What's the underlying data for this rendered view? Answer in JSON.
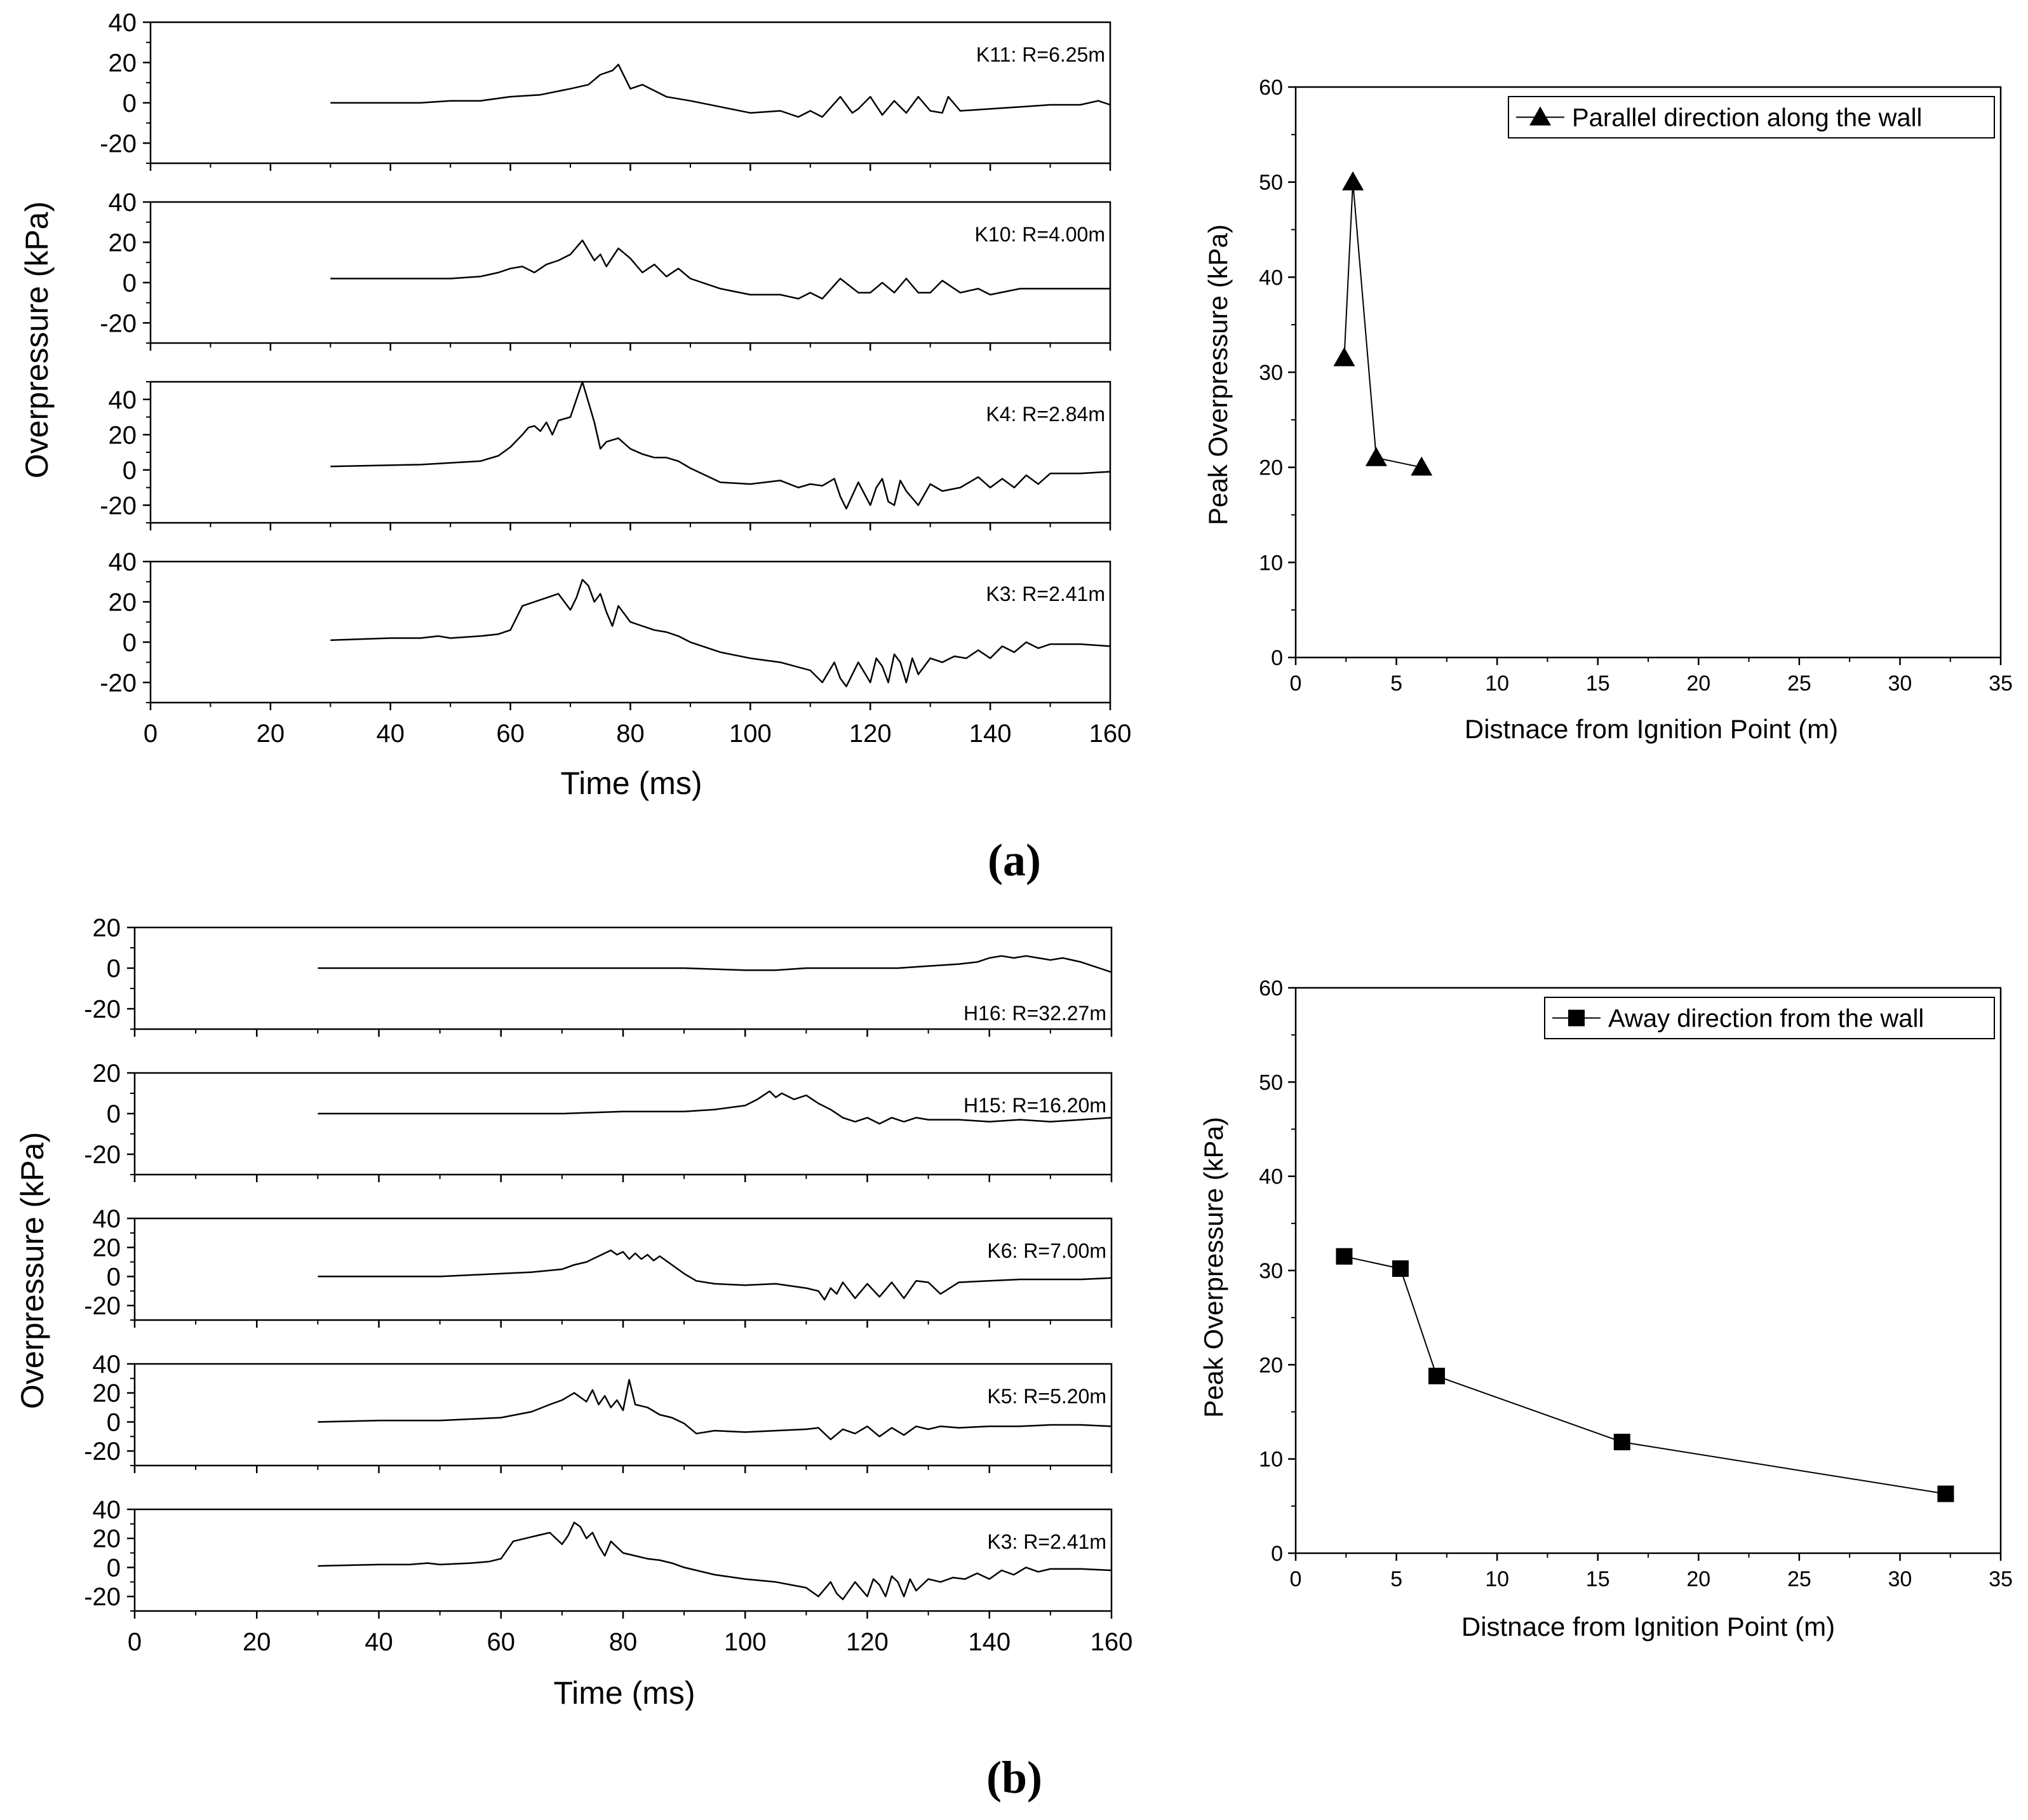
{
  "panel_labels": [
    "(a)",
    "(b)"
  ],
  "chart_data": [
    {
      "panel": "a",
      "type": "line",
      "title": "",
      "xlabel": "Time (ms)",
      "ylabel": "Overpressure (kPa)",
      "xlim": [
        0,
        160
      ],
      "xticks": [
        0,
        20,
        40,
        60,
        80,
        100,
        120,
        140,
        160
      ],
      "subplots": [
        {
          "label": "K11: R=6.25m",
          "ylim": [
            -30,
            40
          ],
          "yticks": [
            -20,
            0,
            20,
            40
          ],
          "x": [
            30,
            45,
            50,
            55,
            60,
            65,
            70,
            73,
            75,
            77,
            78,
            80,
            82,
            84,
            86,
            90,
            95,
            100,
            105,
            108,
            110,
            112,
            115,
            117,
            118,
            120,
            122,
            124,
            126,
            128,
            130,
            132,
            133,
            135,
            140,
            145,
            150,
            155,
            158,
            160
          ],
          "values": [
            0,
            0,
            1,
            1,
            3,
            4,
            7,
            9,
            14,
            16,
            19,
            7,
            9,
            6,
            3,
            1,
            -2,
            -5,
            -4,
            -7,
            -4,
            -7,
            3,
            -5,
            -3,
            3,
            -6,
            1,
            -5,
            3,
            -4,
            -5,
            3,
            -4,
            -3,
            -2,
            -1,
            -1,
            1,
            -1
          ]
        },
        {
          "label": "K10: R=4.00m",
          "ylim": [
            -30,
            40
          ],
          "yticks": [
            -20,
            0,
            20,
            40
          ],
          "x": [
            30,
            50,
            55,
            58,
            60,
            62,
            64,
            66,
            68,
            70,
            72,
            74,
            75,
            76,
            78,
            80,
            82,
            84,
            86,
            88,
            90,
            95,
            100,
            105,
            108,
            110,
            112,
            115,
            118,
            120,
            122,
            124,
            126,
            128,
            130,
            132,
            135,
            138,
            140,
            145,
            150,
            155,
            160
          ],
          "values": [
            2,
            2,
            3,
            5,
            7,
            8,
            5,
            9,
            11,
            14,
            21,
            11,
            14,
            8,
            17,
            12,
            5,
            9,
            3,
            7,
            2,
            -3,
            -6,
            -6,
            -8,
            -5,
            -8,
            2,
            -5,
            -5,
            0,
            -5,
            2,
            -5,
            -5,
            1,
            -5,
            -3,
            -6,
            -3,
            -3,
            -3,
            -3
          ],
          "note": "values approximate"
        },
        {
          "label": "K4: R=2.84m",
          "ylim": [
            -30,
            50
          ],
          "yticks": [
            -20,
            0,
            20,
            40
          ],
          "x": [
            30,
            45,
            50,
            55,
            58,
            60,
            62,
            63,
            64,
            65,
            66,
            67,
            68,
            70,
            72,
            74,
            75,
            76,
            78,
            80,
            82,
            84,
            86,
            88,
            90,
            95,
            100,
            105,
            108,
            110,
            112,
            114,
            115,
            116,
            118,
            120,
            121,
            122,
            123,
            124,
            125,
            126,
            128,
            130,
            132,
            135,
            138,
            140,
            142,
            144,
            146,
            148,
            150,
            155,
            160
          ],
          "values": [
            2,
            3,
            4,
            5,
            8,
            13,
            20,
            24,
            25,
            22,
            27,
            20,
            28,
            30,
            50,
            27,
            12,
            16,
            18,
            12,
            9,
            7,
            7,
            5,
            1,
            -7,
            -8,
            -6,
            -10,
            -8,
            -9,
            -5,
            -15,
            -22,
            -7,
            -20,
            -10,
            -5,
            -18,
            -20,
            -6,
            -12,
            -20,
            -8,
            -12,
            -10,
            -4,
            -10,
            -5,
            -10,
            -3,
            -8,
            -2,
            -2,
            -1
          ],
          "note": "values approximate"
        },
        {
          "label": "K3: R=2.41m",
          "ylim": [
            -30,
            40
          ],
          "yticks": [
            -20,
            0,
            20,
            40
          ],
          "x": [
            30,
            40,
            45,
            48,
            50,
            55,
            58,
            60,
            62,
            64,
            66,
            68,
            70,
            71,
            72,
            73,
            74,
            75,
            76,
            77,
            78,
            80,
            82,
            84,
            86,
            88,
            90,
            95,
            100,
            105,
            110,
            112,
            114,
            115,
            116,
            118,
            119,
            120,
            121,
            122,
            123,
            124,
            125,
            126,
            127,
            128,
            130,
            132,
            134,
            136,
            138,
            140,
            142,
            144,
            146,
            148,
            150,
            155,
            160
          ],
          "values": [
            1,
            2,
            2,
            3,
            2,
            3,
            4,
            6,
            18,
            20,
            22,
            24,
            16,
            22,
            31,
            28,
            20,
            24,
            15,
            8,
            18,
            10,
            8,
            6,
            5,
            3,
            0,
            -5,
            -8,
            -10,
            -14,
            -20,
            -10,
            -18,
            -22,
            -10,
            -15,
            -20,
            -8,
            -12,
            -20,
            -6,
            -10,
            -20,
            -8,
            -16,
            -8,
            -10,
            -7,
            -8,
            -4,
            -8,
            -2,
            -5,
            0,
            -3,
            -1,
            -1,
            -2
          ],
          "note": "values approximate"
        }
      ]
    },
    {
      "panel": "a",
      "type": "line",
      "xlabel": "Distnace from Ignition Point (m)",
      "ylabel": "Peak Overpressure (kPa)",
      "xlim": [
        0,
        35
      ],
      "ylim": [
        0,
        60
      ],
      "xticks": [
        0,
        5,
        10,
        15,
        20,
        25,
        30,
        35
      ],
      "yticks": [
        0,
        10,
        20,
        30,
        40,
        50,
        60
      ],
      "legend": "top-right",
      "marker": "triangle",
      "series": [
        {
          "name": "Parallel direction along the wall",
          "x": [
            2.41,
            2.84,
            4.0,
            6.25
          ],
          "values": [
            31.5,
            50,
            21,
            20
          ]
        }
      ]
    },
    {
      "panel": "b",
      "type": "line",
      "title": "",
      "xlabel": "Time (ms)",
      "ylabel": "Overpressure (kPa)",
      "xlim": [
        0,
        160
      ],
      "xticks": [
        0,
        20,
        40,
        60,
        80,
        100,
        120,
        140,
        160
      ],
      "subplots": [
        {
          "label": "H16: R=32.27m",
          "label_pos": "bottom",
          "ylim": [
            -30,
            20
          ],
          "yticks": [
            -20,
            0,
            20
          ],
          "x": [
            30,
            40,
            50,
            60,
            70,
            80,
            90,
            100,
            105,
            110,
            115,
            120,
            125,
            130,
            135,
            138,
            140,
            142,
            144,
            146,
            148,
            150,
            152,
            155,
            158,
            160
          ],
          "values": [
            0,
            0,
            0,
            0,
            0,
            0,
            0,
            -1,
            -1,
            0,
            0,
            0,
            0,
            1,
            2,
            3,
            5,
            6,
            5,
            6,
            5,
            4,
            5,
            3,
            0,
            -2
          ],
          "note": "values approximate"
        },
        {
          "label": "H15: R=16.20m",
          "ylim": [
            -30,
            20
          ],
          "yticks": [
            -20,
            0,
            20
          ],
          "x": [
            30,
            50,
            60,
            70,
            80,
            90,
            95,
            100,
            102,
            104,
            105,
            106,
            108,
            110,
            112,
            114,
            116,
            118,
            120,
            122,
            124,
            126,
            128,
            130,
            135,
            140,
            145,
            150,
            155,
            160
          ],
          "values": [
            0,
            0,
            0,
            0,
            1,
            1,
            2,
            4,
            7,
            11,
            8,
            10,
            7,
            9,
            5,
            2,
            -2,
            -4,
            -2,
            -5,
            -2,
            -4,
            -2,
            -3,
            -3,
            -4,
            -3,
            -4,
            -3,
            -2
          ],
          "note": "values approximate"
        },
        {
          "label": "K6: R=7.00m",
          "ylim": [
            -30,
            40
          ],
          "yticks": [
            -20,
            0,
            20,
            40
          ],
          "x": [
            30,
            40,
            45,
            50,
            55,
            60,
            65,
            70,
            72,
            74,
            76,
            78,
            79,
            80,
            81,
            82,
            83,
            84,
            85,
            86,
            88,
            90,
            92,
            95,
            100,
            105,
            110,
            112,
            113,
            114,
            115,
            116,
            118,
            120,
            122,
            124,
            126,
            128,
            130,
            132,
            135,
            140,
            145,
            150,
            155,
            160
          ],
          "values": [
            0,
            0,
            0,
            0,
            1,
            2,
            3,
            5,
            8,
            10,
            14,
            18,
            15,
            17,
            12,
            16,
            12,
            15,
            11,
            14,
            8,
            2,
            -3,
            -5,
            -6,
            -5,
            -8,
            -10,
            -16,
            -8,
            -12,
            -4,
            -15,
            -5,
            -14,
            -4,
            -15,
            -3,
            -4,
            -12,
            -4,
            -3,
            -2,
            -2,
            -2,
            -1
          ],
          "note": "values approximate"
        },
        {
          "label": "K5: R=5.20m",
          "ylim": [
            -30,
            40
          ],
          "yticks": [
            -20,
            0,
            20,
            40
          ],
          "x": [
            30,
            40,
            50,
            55,
            60,
            65,
            68,
            70,
            72,
            74,
            75,
            76,
            77,
            78,
            79,
            80,
            81,
            82,
            84,
            86,
            88,
            90,
            92,
            95,
            100,
            105,
            110,
            112,
            114,
            116,
            118,
            120,
            122,
            124,
            126,
            128,
            130,
            132,
            135,
            140,
            145,
            150,
            155,
            160
          ],
          "values": [
            0,
            1,
            1,
            2,
            3,
            7,
            12,
            15,
            20,
            14,
            22,
            12,
            18,
            10,
            15,
            8,
            29,
            12,
            10,
            5,
            3,
            -1,
            -8,
            -6,
            -7,
            -6,
            -5,
            -4,
            -12,
            -5,
            -8,
            -3,
            -10,
            -4,
            -9,
            -3,
            -5,
            -3,
            -4,
            -3,
            -3,
            -2,
            -2,
            -3
          ],
          "note": "values approximate"
        },
        {
          "label": "K3: R=2.41m",
          "ylim": [
            -30,
            40
          ],
          "yticks": [
            -20,
            0,
            20,
            40
          ],
          "x": [
            30,
            40,
            45,
            48,
            50,
            55,
            58,
            60,
            62,
            64,
            66,
            68,
            70,
            71,
            72,
            73,
            74,
            75,
            76,
            77,
            78,
            80,
            82,
            84,
            86,
            88,
            90,
            95,
            100,
            105,
            110,
            112,
            114,
            115,
            116,
            118,
            119,
            120,
            121,
            122,
            123,
            124,
            125,
            126,
            127,
            128,
            130,
            132,
            134,
            136,
            138,
            140,
            142,
            144,
            146,
            148,
            150,
            155,
            160
          ],
          "values": [
            1,
            2,
            2,
            3,
            2,
            3,
            4,
            6,
            18,
            20,
            22,
            24,
            16,
            22,
            31,
            28,
            20,
            24,
            15,
            8,
            18,
            10,
            8,
            6,
            5,
            3,
            0,
            -5,
            -8,
            -10,
            -14,
            -20,
            -10,
            -18,
            -22,
            -10,
            -15,
            -20,
            -8,
            -12,
            -20,
            -6,
            -10,
            -20,
            -8,
            -16,
            -8,
            -10,
            -7,
            -8,
            -4,
            -8,
            -2,
            -5,
            0,
            -3,
            -1,
            -1,
            -2
          ],
          "note": "values approximate"
        }
      ]
    },
    {
      "panel": "b",
      "type": "line",
      "xlabel": "Distnace from Ignition Point (m)",
      "ylabel": "Peak Overpressure (kPa)",
      "xlim": [
        0,
        35
      ],
      "ylim": [
        0,
        60
      ],
      "xticks": [
        0,
        5,
        10,
        15,
        20,
        25,
        30,
        35
      ],
      "yticks": [
        0,
        10,
        20,
        30,
        40,
        50,
        60
      ],
      "legend": "top-right",
      "marker": "square",
      "series": [
        {
          "name": "Away direction from the wall",
          "x": [
            2.41,
            5.2,
            7.0,
            16.2,
            32.27
          ],
          "values": [
            31.5,
            30.2,
            18.8,
            11.8,
            6.3
          ]
        }
      ]
    }
  ]
}
